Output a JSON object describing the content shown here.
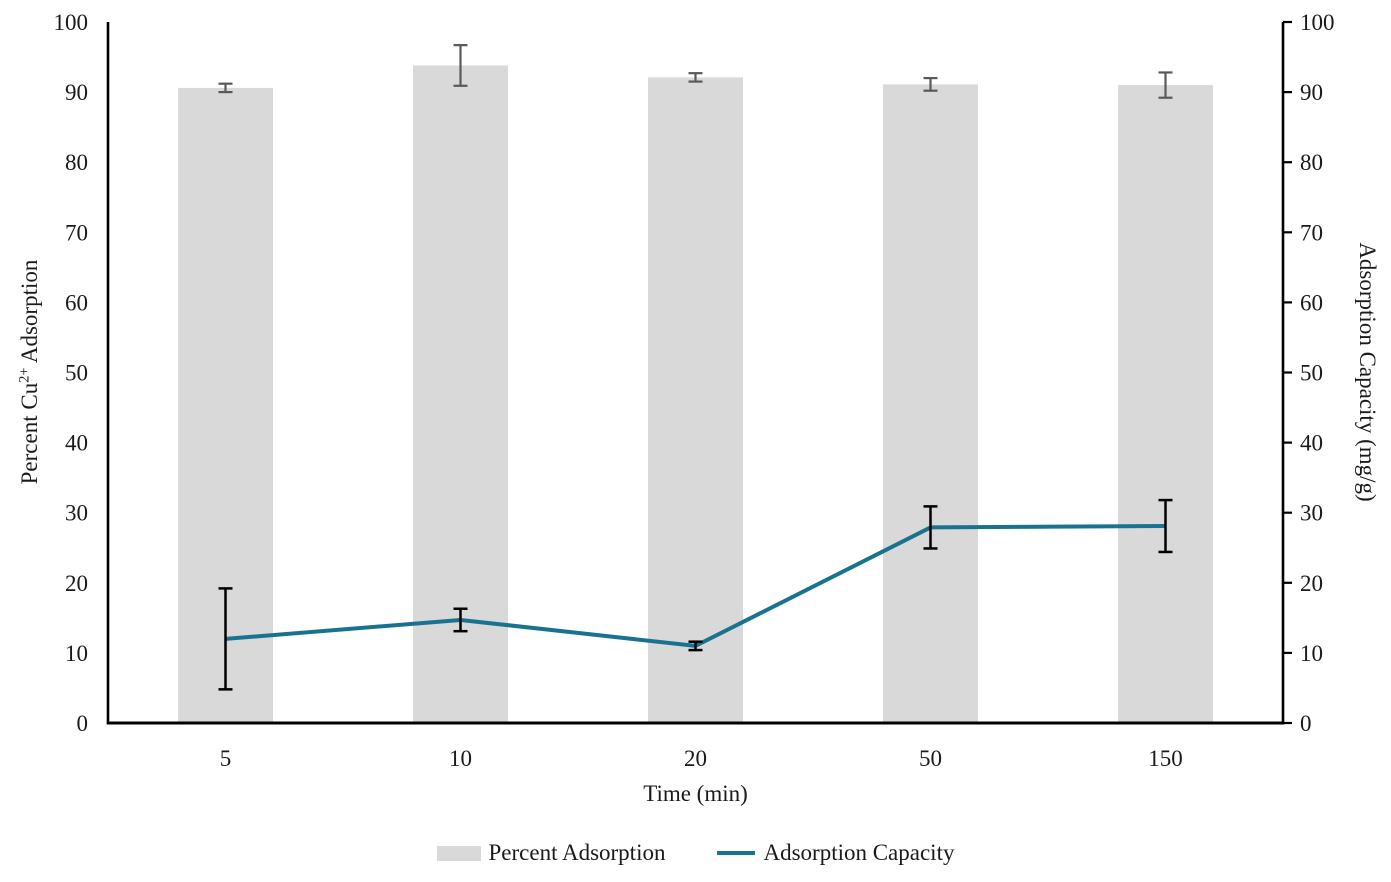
{
  "chart_data": {
    "type": "combo-bar-line",
    "categories": [
      "5",
      "10",
      "20",
      "50",
      "150"
    ],
    "xlabel": "Time (min)",
    "ylabel_left_parts": {
      "pre": "Percent Cu",
      "sup": "2+",
      "post": " Adsorption"
    },
    "ylabel_right": "Adsorption Capacity (mg/g)",
    "y_left": {
      "min": 0,
      "max": 100,
      "step": 10,
      "ticks": [
        0,
        10,
        20,
        30,
        40,
        50,
        60,
        70,
        80,
        90,
        100
      ]
    },
    "y_right": {
      "min": 0,
      "max": 100,
      "step": 10,
      "ticks": [
        0,
        10,
        20,
        30,
        40,
        50,
        60,
        70,
        80,
        90,
        100
      ]
    },
    "grid": "off",
    "legend_position": "bottom",
    "series": [
      {
        "name": "Percent Adsorption",
        "type": "bar",
        "axis": "left",
        "color": "#d9d9d9",
        "error_color": "#595959",
        "values": [
          90.6,
          93.8,
          92.1,
          91.1,
          91.0
        ],
        "errors": [
          0.6,
          2.9,
          0.6,
          0.9,
          1.8
        ]
      },
      {
        "name": "Adsorption Capacity",
        "type": "line",
        "axis": "right",
        "color": "#1a7291",
        "error_color": "#000000",
        "values": [
          12.0,
          14.7,
          11.0,
          27.9,
          28.1
        ],
        "errors": [
          7.2,
          1.6,
          0.6,
          3.0,
          3.7
        ]
      }
    ]
  }
}
